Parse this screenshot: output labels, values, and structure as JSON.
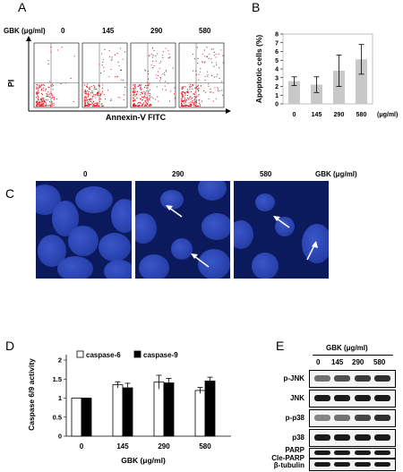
{
  "panels": {
    "A": "A",
    "B": "B",
    "C": "C",
    "D": "D",
    "E": "E"
  },
  "panelA": {
    "unit_label": "GBK (μg/ml)",
    "doses": [
      "0",
      "145",
      "290",
      "580"
    ],
    "ylabel": "PI",
    "xlabel": "Annexin-Ⅴ FITC"
  },
  "panelC": {
    "doses": [
      "0",
      "290",
      "580"
    ],
    "unit_label": "GBK (μg/ml)"
  },
  "panelE": {
    "unit_label": "GBK (μg/ml)",
    "doses": [
      "0",
      "145",
      "290",
      "580"
    ],
    "rows": [
      "p-JNK",
      "JNK",
      "p-p38",
      "p38",
      "PARP",
      "Cle-PARP",
      "β-tubulin"
    ]
  },
  "chart_data": [
    {
      "type": "bar",
      "panel": "B",
      "categories": [
        "0",
        "145",
        "290",
        "580"
      ],
      "values": [
        2.6,
        2.2,
        3.8,
        5.1
      ],
      "errors": [
        0.5,
        0.9,
        1.8,
        1.7
      ],
      "ylabel": "Apoptotic cells (%)",
      "xlabel": "(μg/ml)",
      "ylim": [
        0,
        8
      ],
      "yticks": [
        "0",
        "1",
        "2",
        "3",
        "4",
        "5",
        "6",
        "7",
        "8"
      ],
      "bar_color": "#c8c8c8"
    },
    {
      "type": "bar",
      "panel": "D",
      "categories": [
        "0",
        "145",
        "290",
        "580"
      ],
      "series": [
        {
          "name": "caspase-6",
          "values": [
            1.0,
            1.35,
            1.42,
            1.2
          ],
          "errors": [
            0,
            0.08,
            0.18,
            0.08
          ],
          "color": "#ffffff"
        },
        {
          "name": "caspase-9",
          "values": [
            1.0,
            1.27,
            1.4,
            1.45
          ],
          "errors": [
            0,
            0.12,
            0.12,
            0.1
          ],
          "color": "#000000"
        }
      ],
      "ylabel": "Caspase 6/9 activity",
      "xlabel": "GBK (μg/ml)",
      "ylim": [
        0,
        2
      ],
      "yticks": [
        "0",
        "0.5",
        "1",
        "1.5",
        "2"
      ]
    }
  ]
}
